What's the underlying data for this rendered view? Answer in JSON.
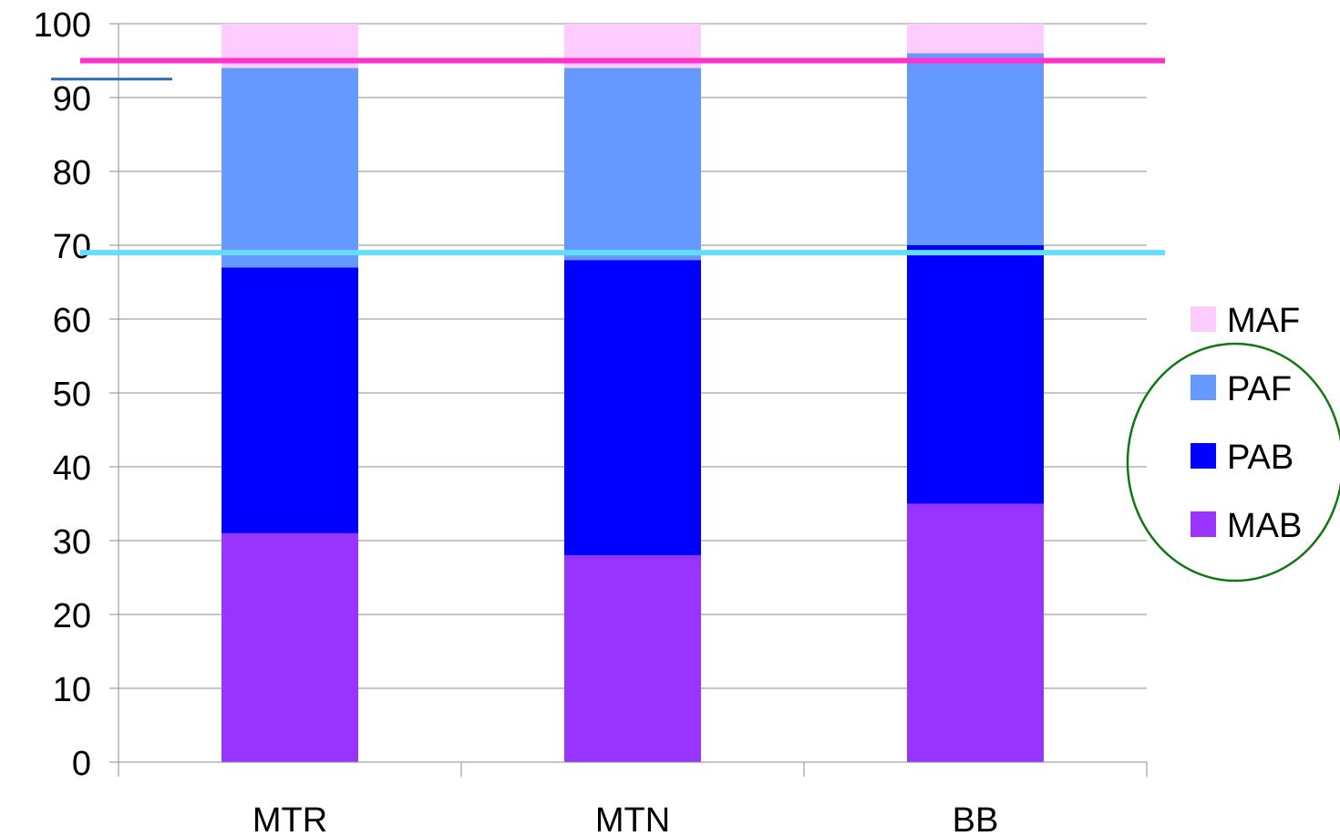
{
  "chart_data": {
    "type": "bar",
    "stacked": true,
    "categories": [
      "MTR",
      "MTN",
      "BB"
    ],
    "series": [
      {
        "name": "MAB",
        "color": "#9933ff",
        "values": [
          31,
          28,
          35
        ]
      },
      {
        "name": "PAB",
        "color": "#0000ff",
        "values": [
          36,
          40,
          35
        ]
      },
      {
        "name": "PAF",
        "color": "#6699ff",
        "values": [
          27,
          26,
          26
        ]
      },
      {
        "name": "MAF",
        "color": "#ffccff",
        "values": [
          6,
          6,
          4
        ]
      }
    ],
    "ylim": [
      0,
      100
    ],
    "yticks": [
      0,
      10,
      20,
      30,
      40,
      50,
      60,
      70,
      80,
      90,
      100
    ],
    "ytick_labels": [
      "0",
      "10",
      "20",
      "30",
      "40",
      "50",
      "60",
      "70",
      "80",
      "90",
      "100"
    ],
    "grid": true,
    "legend_position": "right",
    "legend_order": [
      "MAF",
      "PAF",
      "PAB",
      "MAB"
    ],
    "reference_lines": [
      {
        "value": 95,
        "color": "#ff33cc",
        "span": "full"
      },
      {
        "value": 69,
        "color": "#66ddff",
        "span": "full"
      },
      {
        "value": 92.5,
        "color": "#2e6db4",
        "span": "left-short"
      }
    ],
    "annotation": {
      "shape": "ellipse",
      "color": "#117711",
      "encloses": [
        "PAF",
        "PAB",
        "MAB"
      ]
    },
    "title": "",
    "xlabel": "",
    "ylabel": ""
  }
}
